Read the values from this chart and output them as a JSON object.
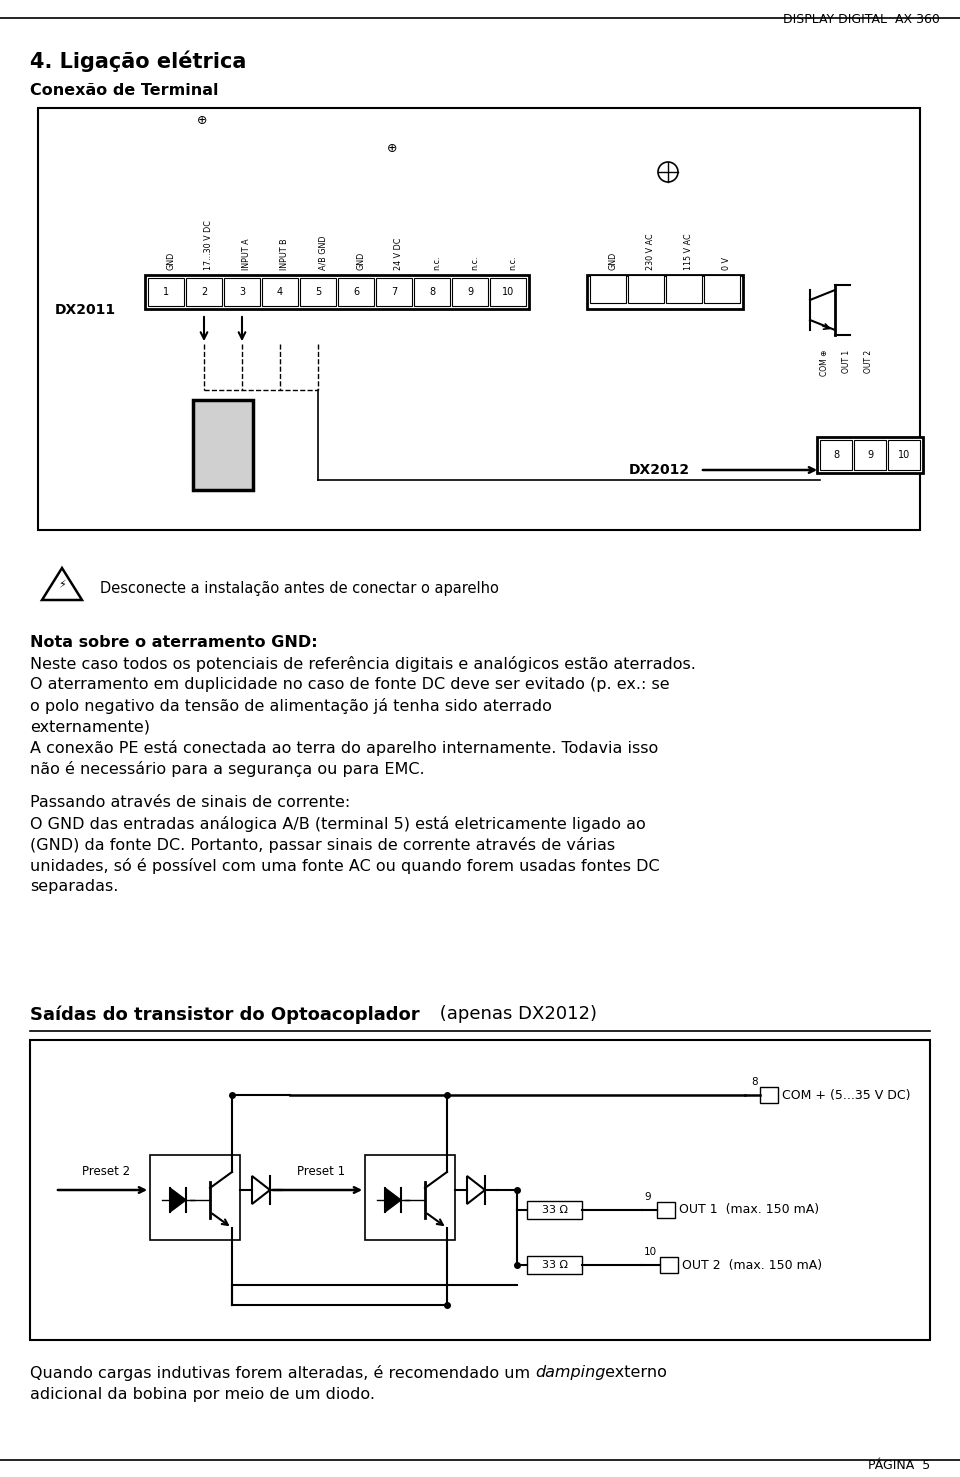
{
  "page_header_right": "DISPLAY DIGITAL  AX 360",
  "page_footer_right": "PÁGINA  5",
  "section_title": "4. Ligação elétrica",
  "subsection_title": "Conexão de Terminal",
  "warning_text": "Desconecte a instalação antes de conectar o aparelho",
  "bg_color": "#ffffff",
  "text_color": "#000000",
  "fontsize_body": 11.5,
  "fontsize_header": 9.0,
  "fontsize_section": 15,
  "fontsize_subsection": 11.5,
  "terminal_labels": [
    "GND",
    "17...30 V DC",
    "INPUT A",
    "INPUT B",
    "A/B GND",
    "GND",
    "24 V DC",
    "n.c.",
    "n.c.",
    "n.c."
  ],
  "terminal_numbers": [
    "1",
    "2",
    "3",
    "4",
    "5",
    "6",
    "7",
    "8",
    "9",
    "10"
  ],
  "pwr_labels": [
    "GND",
    "230 V AC",
    "115 V AC",
    "0 V"
  ],
  "out_labels": [
    "COM",
    "OUT 1",
    "OUT 2"
  ]
}
